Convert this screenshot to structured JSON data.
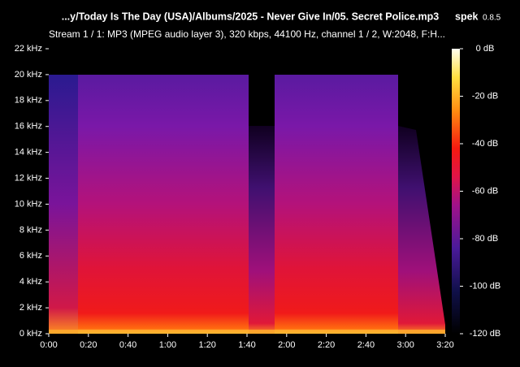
{
  "app": {
    "name": "spek",
    "version": "0.8.5"
  },
  "chart_data": {
    "type": "spectrogram",
    "title": "...y/Today Is The Day (USA)/Albums/2025 - Never Give In/05. Secret Police.mp3",
    "subtitle": "Stream 1 / 1: MP3 (MPEG audio layer 3), 320 kbps, 44100 Hz, channel 1 / 2, W:2048, F:H...",
    "xlim": [
      0,
      200
    ],
    "xticks": [
      {
        "value": 0,
        "label": "0:00"
      },
      {
        "value": 20,
        "label": "0:20"
      },
      {
        "value": 40,
        "label": "0:40"
      },
      {
        "value": 60,
        "label": "1:00"
      },
      {
        "value": 80,
        "label": "1:20"
      },
      {
        "value": 100,
        "label": "1:40"
      },
      {
        "value": 120,
        "label": "2:00"
      },
      {
        "value": 140,
        "label": "2:20"
      },
      {
        "value": 160,
        "label": "2:40"
      },
      {
        "value": 180,
        "label": "3:00"
      },
      {
        "value": 200,
        "label": "3:20"
      }
    ],
    "ylim": [
      0,
      22
    ],
    "yticks": [
      {
        "value": 0,
        "label": "0 kHz"
      },
      {
        "value": 2,
        "label": "2 kHz"
      },
      {
        "value": 4,
        "label": "4 kHz"
      },
      {
        "value": 6,
        "label": "6 kHz"
      },
      {
        "value": 8,
        "label": "8 kHz"
      },
      {
        "value": 10,
        "label": "10 kHz"
      },
      {
        "value": 12,
        "label": "12 kHz"
      },
      {
        "value": 14,
        "label": "14 kHz"
      },
      {
        "value": 16,
        "label": "16 kHz"
      },
      {
        "value": 18,
        "label": "18 kHz"
      },
      {
        "value": 20,
        "label": "20 kHz"
      },
      {
        "value": 22,
        "label": "22 kHz"
      }
    ],
    "zlim": [
      -120,
      0
    ],
    "zticks": [
      {
        "value": 0,
        "label": "0 dB"
      },
      {
        "value": -20,
        "label": "-20 dB"
      },
      {
        "value": -40,
        "label": "-40 dB"
      },
      {
        "value": -60,
        "label": "-60 dB"
      },
      {
        "value": -80,
        "label": "-80 dB"
      },
      {
        "value": -100,
        "label": "-100 dB"
      },
      {
        "value": -120,
        "label": "-120 dB"
      }
    ]
  }
}
